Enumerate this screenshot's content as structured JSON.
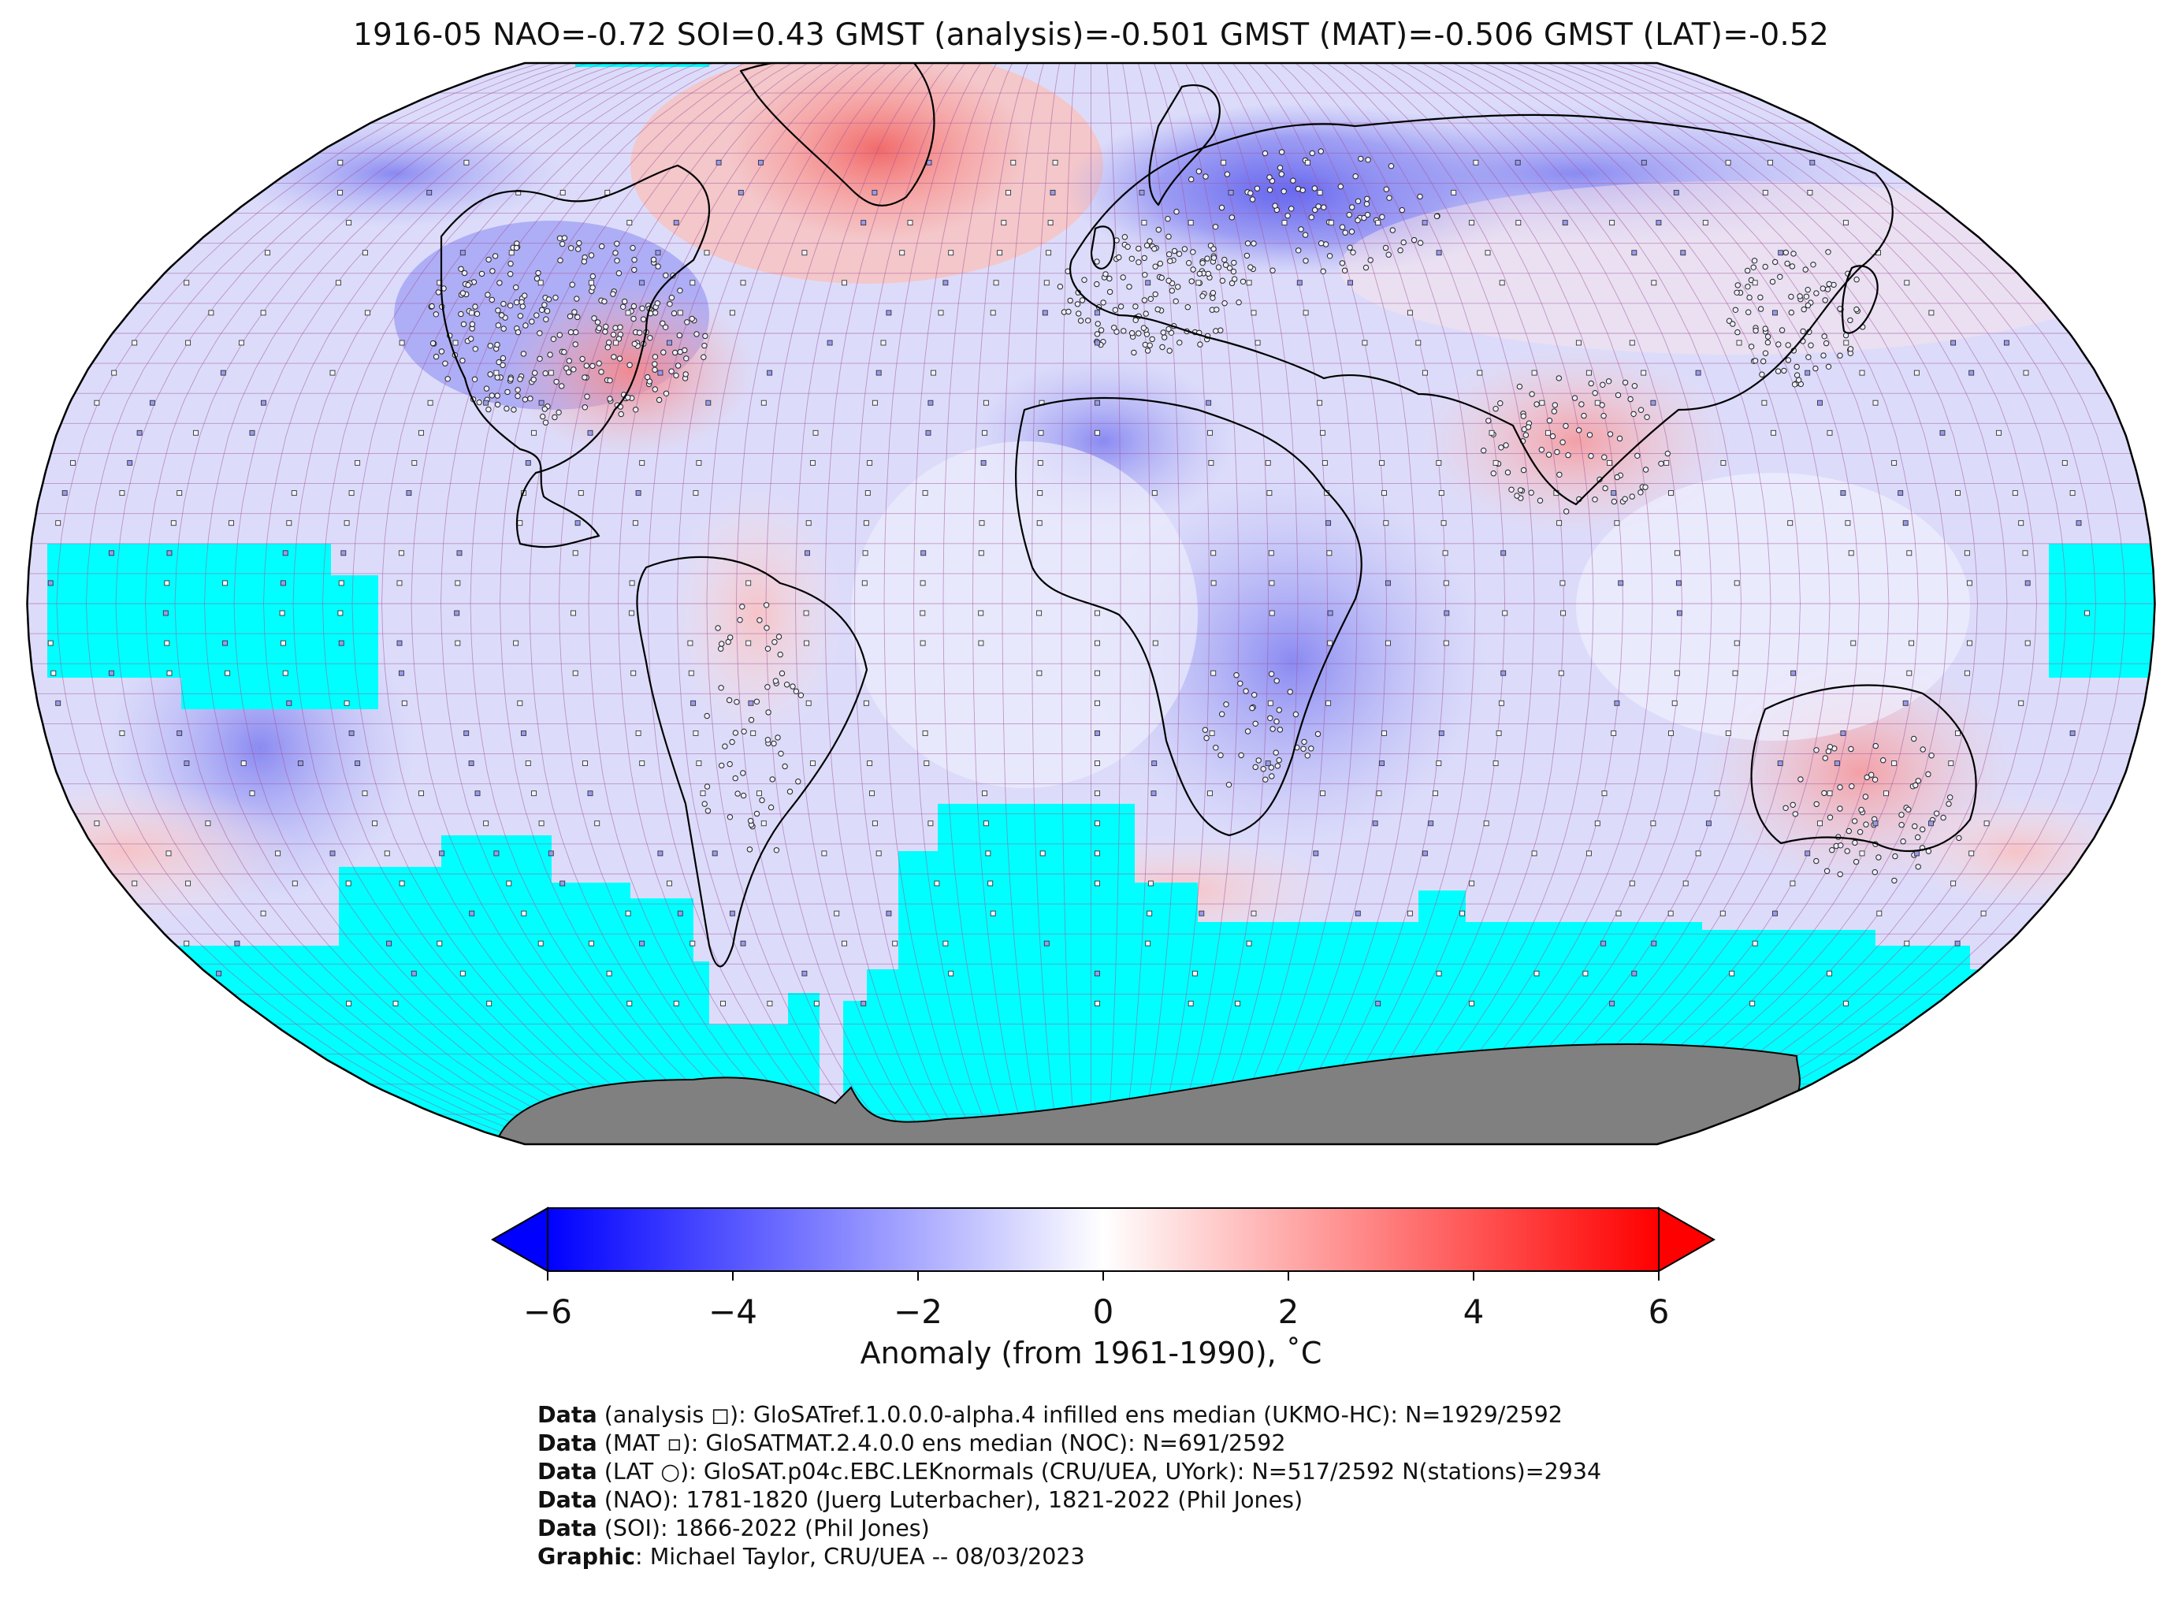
{
  "title": "1916-05 NAO=-0.72 SOI=0.43 GMST (analysis)=-0.501 GMST (MAT)=-0.506 GMST (LAT)=-0.52",
  "map": {
    "projection": "Robinson",
    "ocean_no_data_color": "#00ffff",
    "land_mask_color": "#808080",
    "grid_line_color": "#a2549a",
    "anomaly_regions": [
      {
        "region": "Greenland",
        "anomaly": 3.0
      },
      {
        "region": "Eastern United States",
        "anomaly": 2.0
      },
      {
        "region": "Western North America",
        "anomaly": -3.0
      },
      {
        "region": "Scandinavia and Northern Russia",
        "anomaly": -3.5
      },
      {
        "region": "Siberia",
        "anomaly": -2.0
      },
      {
        "region": "India and South Asia",
        "anomaly": 1.5
      },
      {
        "region": "Australia",
        "anomaly": 1.5
      },
      {
        "region": "Sahara",
        "anomaly": -2.0
      },
      {
        "region": "Southern Africa",
        "anomaly": -2.0
      },
      {
        "region": "Eastern Pacific",
        "anomaly": -2.0
      },
      {
        "region": "South America",
        "anomaly": 0.5
      },
      {
        "region": "Southern Ocean",
        "anomaly": 0.5
      }
    ]
  },
  "colorbar": {
    "colors": {
      "min": "#0000ff",
      "mid": "#ffffff",
      "max": "#ff0000"
    },
    "range": [
      -6,
      6
    ],
    "extend": "both",
    "ticks": [
      "−6",
      "−4",
      "−2",
      "0",
      "2",
      "4",
      "6"
    ],
    "label": "Anomaly (from 1961-1990), ˚C"
  },
  "credits": [
    {
      "key": "Data",
      "text": " (analysis ◻): GloSATref.1.0.0.0-alpha.4 infilled ens median (UKMO-HC): N=1929/2592"
    },
    {
      "key": "Data",
      "text": " (MAT ▫): GloSATMAT.2.4.0.0 ens median (NOC): N=691/2592"
    },
    {
      "key": "Data",
      "text": " (LAT ○): GloSAT.p04c.EBC.LEKnormals (CRU/UEA, UYork): N=517/2592 N(stations)=2934"
    },
    {
      "key": "Data",
      "text": " (NAO): 1781-1820 (Juerg Luterbacher), 1821-2022 (Phil Jones)"
    },
    {
      "key": "Data",
      "text": " (SOI): 1866-2022 (Phil Jones)"
    },
    {
      "key": "Graphic",
      "text": ": Michael Taylor, CRU/UEA -- 08/03/2023"
    }
  ]
}
